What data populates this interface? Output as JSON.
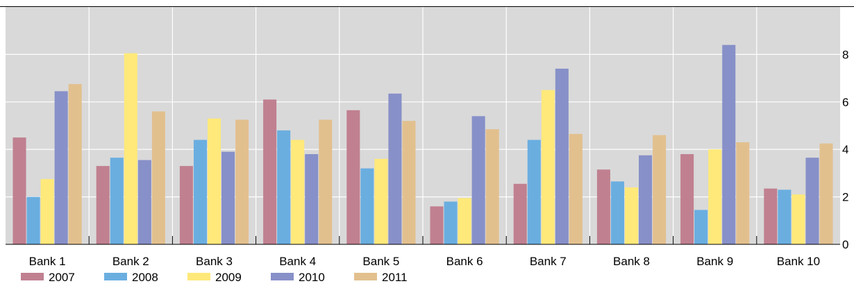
{
  "chart_data": {
    "type": "bar",
    "categories": [
      "Bank 1",
      "Bank 2",
      "Bank 3",
      "Bank 4",
      "Bank 5",
      "Bank 6",
      "Bank 7",
      "Bank 8",
      "Bank 9",
      "Bank 10"
    ],
    "series": [
      {
        "name": "2007",
        "color": "#c08090",
        "values": [
          4.5,
          3.3,
          3.3,
          6.1,
          5.65,
          1.6,
          2.55,
          3.15,
          3.8,
          2.35
        ]
      },
      {
        "name": "2008",
        "color": "#6aaee0",
        "values": [
          2.0,
          3.65,
          4.4,
          4.8,
          3.2,
          1.8,
          4.4,
          2.65,
          1.45,
          2.3
        ]
      },
      {
        "name": "2009",
        "color": "#ffe97a",
        "values": [
          2.75,
          8.05,
          5.3,
          4.4,
          3.6,
          1.95,
          6.5,
          2.4,
          4.0,
          2.1
        ]
      },
      {
        "name": "2010",
        "color": "#8790c8",
        "values": [
          6.45,
          3.55,
          3.9,
          3.8,
          6.35,
          5.4,
          7.4,
          3.75,
          8.4,
          3.65
        ]
      },
      {
        "name": "2011",
        "color": "#e2c08e",
        "values": [
          6.75,
          5.6,
          5.25,
          5.25,
          5.2,
          4.85,
          4.65,
          4.6,
          4.3,
          4.25
        ]
      }
    ],
    "yticks": [
      "0",
      "2",
      "4",
      "6",
      "8"
    ],
    "ylim": [
      0,
      10
    ],
    "title": "",
    "xlabel": "",
    "ylabel": "",
    "grid": true,
    "legend": "bottom-left"
  }
}
